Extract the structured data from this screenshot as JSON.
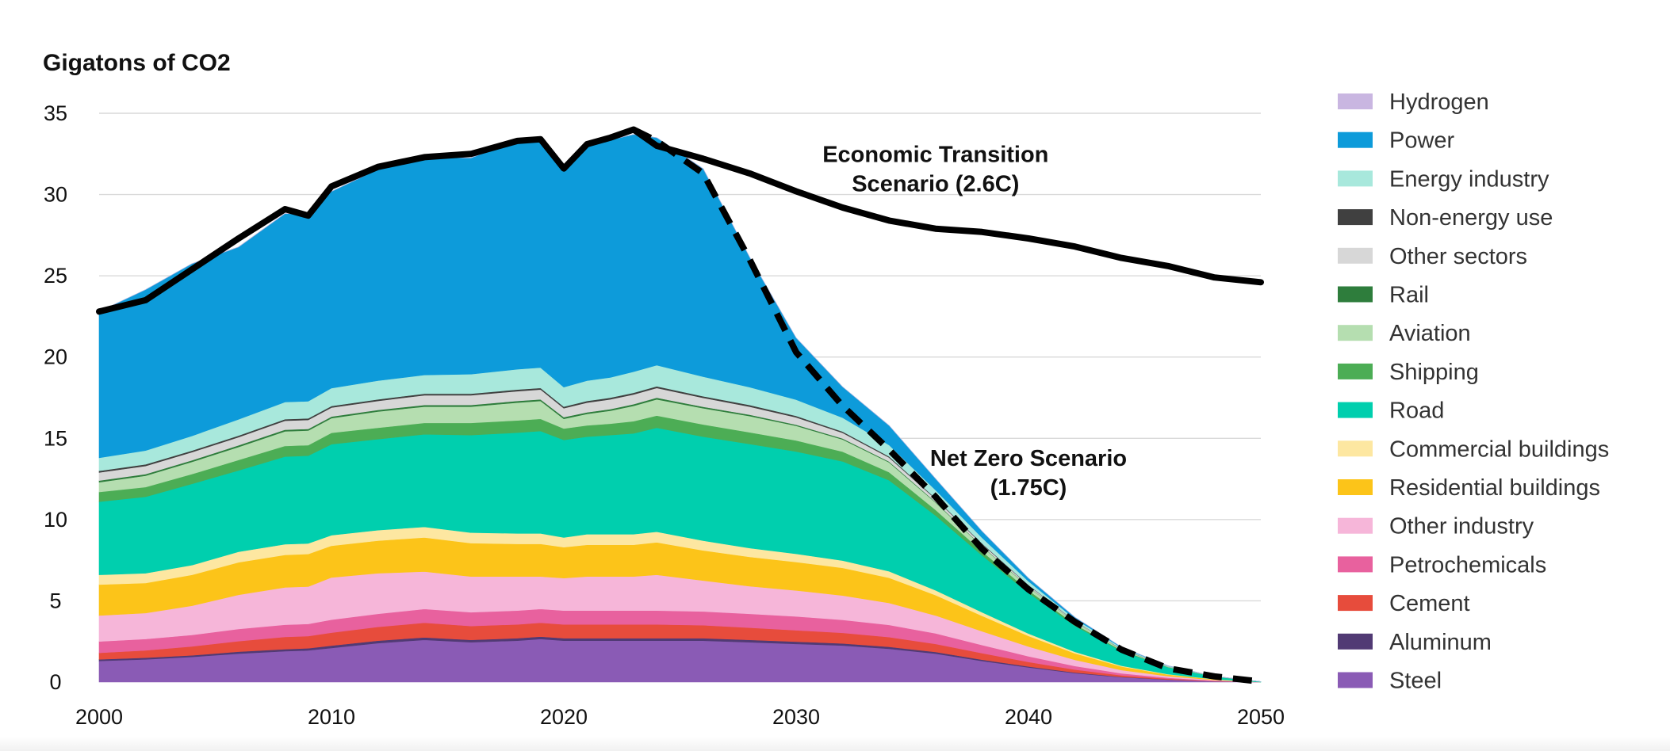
{
  "chart_data": {
    "type": "area",
    "stacked": true,
    "ylabel": "Gigatons of CO2",
    "xlabel": "",
    "ylim": [
      0,
      35
    ],
    "xlim": [
      2000,
      2050
    ],
    "yticks": [
      0,
      5,
      10,
      15,
      20,
      25,
      30,
      35
    ],
    "xticks": [
      2000,
      2010,
      2020,
      2030,
      2040,
      2050
    ],
    "grid": true,
    "legend_position": "right",
    "x": [
      2000,
      2002,
      2004,
      2006,
      2008,
      2009,
      2010,
      2012,
      2014,
      2016,
      2018,
      2019,
      2020,
      2021,
      2022,
      2023,
      2024,
      2026,
      2028,
      2030,
      2032,
      2034,
      2036,
      2038,
      2040,
      2042,
      2044,
      2046,
      2048,
      2050
    ],
    "series": [
      {
        "name": "Steel",
        "color": "#8a5bb5",
        "values": [
          1.3,
          1.4,
          1.55,
          1.75,
          1.9,
          1.95,
          2.1,
          2.4,
          2.6,
          2.45,
          2.55,
          2.65,
          2.55,
          2.55,
          2.55,
          2.55,
          2.55,
          2.55,
          2.45,
          2.35,
          2.25,
          2.05,
          1.75,
          1.3,
          0.9,
          0.55,
          0.3,
          0.15,
          0.05,
          0.0
        ]
      },
      {
        "name": "Aluminum",
        "color": "#513a74",
        "values": [
          0.1,
          0.1,
          0.1,
          0.12,
          0.13,
          0.13,
          0.14,
          0.15,
          0.15,
          0.15,
          0.15,
          0.15,
          0.15,
          0.15,
          0.15,
          0.15,
          0.15,
          0.15,
          0.15,
          0.14,
          0.13,
          0.12,
          0.1,
          0.08,
          0.06,
          0.04,
          0.02,
          0.01,
          0.0,
          0.0
        ]
      },
      {
        "name": "Cement",
        "color": "#e74c3c",
        "values": [
          0.4,
          0.45,
          0.55,
          0.65,
          0.75,
          0.75,
          0.8,
          0.85,
          0.9,
          0.85,
          0.85,
          0.85,
          0.85,
          0.85,
          0.85,
          0.85,
          0.85,
          0.8,
          0.75,
          0.7,
          0.65,
          0.6,
          0.5,
          0.4,
          0.28,
          0.18,
          0.1,
          0.05,
          0.02,
          0.0
        ]
      },
      {
        "name": "Petrochemicals",
        "color": "#e8619e",
        "values": [
          0.7,
          0.7,
          0.7,
          0.75,
          0.75,
          0.75,
          0.8,
          0.8,
          0.85,
          0.85,
          0.85,
          0.85,
          0.85,
          0.85,
          0.85,
          0.85,
          0.85,
          0.85,
          0.85,
          0.85,
          0.8,
          0.75,
          0.65,
          0.5,
          0.35,
          0.22,
          0.12,
          0.06,
          0.02,
          0.0
        ]
      },
      {
        "name": "Other industry",
        "color": "#f6b6d9",
        "values": [
          1.6,
          1.6,
          1.8,
          2.1,
          2.3,
          2.3,
          2.6,
          2.5,
          2.3,
          2.2,
          2.1,
          2.0,
          2.0,
          2.1,
          2.1,
          2.1,
          2.2,
          1.9,
          1.7,
          1.6,
          1.5,
          1.35,
          1.1,
          0.85,
          0.6,
          0.38,
          0.2,
          0.1,
          0.04,
          0.0
        ]
      },
      {
        "name": "Residential buildings",
        "color": "#fcc419",
        "values": [
          1.9,
          1.85,
          1.9,
          2.0,
          2.0,
          2.0,
          1.95,
          2.0,
          2.1,
          2.05,
          2.0,
          2.0,
          1.9,
          1.95,
          1.95,
          1.95,
          2.0,
          1.85,
          1.8,
          1.75,
          1.7,
          1.55,
          1.25,
          0.95,
          0.65,
          0.4,
          0.22,
          0.1,
          0.04,
          0.0
        ]
      },
      {
        "name": "Commercial buildings",
        "color": "#fde7a1",
        "values": [
          0.6,
          0.6,
          0.6,
          0.65,
          0.65,
          0.65,
          0.65,
          0.65,
          0.65,
          0.65,
          0.65,
          0.65,
          0.6,
          0.65,
          0.65,
          0.65,
          0.65,
          0.6,
          0.55,
          0.5,
          0.45,
          0.4,
          0.3,
          0.22,
          0.15,
          0.09,
          0.05,
          0.02,
          0.01,
          0.0
        ]
      },
      {
        "name": "Road",
        "color": "#00cfae",
        "values": [
          4.5,
          4.7,
          5.0,
          5.0,
          5.4,
          5.4,
          5.6,
          5.6,
          5.7,
          6.0,
          6.2,
          6.3,
          6.0,
          6.0,
          6.1,
          6.2,
          6.4,
          6.4,
          6.4,
          6.3,
          6.1,
          5.6,
          4.6,
          3.5,
          2.5,
          1.6,
          0.9,
          0.42,
          0.15,
          0.03
        ]
      },
      {
        "name": "Shipping",
        "color": "#4cad55",
        "values": [
          0.6,
          0.6,
          0.6,
          0.65,
          0.65,
          0.65,
          0.7,
          0.7,
          0.7,
          0.75,
          0.75,
          0.75,
          0.7,
          0.7,
          0.7,
          0.75,
          0.75,
          0.75,
          0.72,
          0.68,
          0.6,
          0.5,
          0.35,
          0.25,
          0.16,
          0.1,
          0.05,
          0.02,
          0.01,
          0.0
        ]
      },
      {
        "name": "Aviation",
        "color": "#b5deb0",
        "values": [
          0.6,
          0.7,
          0.75,
          0.8,
          0.9,
          0.9,
          0.9,
          1.0,
          1.0,
          1.0,
          1.1,
          1.1,
          0.6,
          0.7,
          0.8,
          0.95,
          1.0,
          1.0,
          1.0,
          0.9,
          0.75,
          0.6,
          0.45,
          0.3,
          0.2,
          0.12,
          0.06,
          0.03,
          0.01,
          0.0
        ]
      },
      {
        "name": "Rail",
        "color": "#2e7d3c",
        "values": [
          0.1,
          0.1,
          0.1,
          0.1,
          0.1,
          0.1,
          0.1,
          0.1,
          0.1,
          0.1,
          0.1,
          0.1,
          0.1,
          0.1,
          0.1,
          0.1,
          0.1,
          0.09,
          0.08,
          0.07,
          0.06,
          0.05,
          0.04,
          0.03,
          0.02,
          0.01,
          0.0,
          0.0,
          0.0,
          0.0
        ]
      },
      {
        "name": "Other sectors",
        "color": "#d7d7d7",
        "values": [
          0.5,
          0.5,
          0.5,
          0.5,
          0.55,
          0.55,
          0.55,
          0.55,
          0.6,
          0.6,
          0.6,
          0.6,
          0.55,
          0.6,
          0.6,
          0.6,
          0.6,
          0.55,
          0.5,
          0.45,
          0.35,
          0.25,
          0.18,
          0.12,
          0.08,
          0.05,
          0.02,
          0.01,
          0.0,
          0.0
        ]
      },
      {
        "name": "Non-energy use",
        "color": "#404040",
        "values": [
          0.1,
          0.1,
          0.1,
          0.1,
          0.1,
          0.1,
          0.1,
          0.1,
          0.1,
          0.1,
          0.1,
          0.1,
          0.1,
          0.1,
          0.1,
          0.1,
          0.1,
          0.1,
          0.1,
          0.09,
          0.08,
          0.07,
          0.05,
          0.04,
          0.03,
          0.02,
          0.01,
          0.0,
          0.0,
          0.0
        ]
      },
      {
        "name": "Energy industry",
        "color": "#a8e8dc",
        "values": [
          0.8,
          0.85,
          0.9,
          1.0,
          1.05,
          1.05,
          1.1,
          1.15,
          1.15,
          1.2,
          1.25,
          1.25,
          1.2,
          1.25,
          1.25,
          1.3,
          1.3,
          1.2,
          1.1,
          1.0,
          0.85,
          0.7,
          0.5,
          0.35,
          0.22,
          0.13,
          0.07,
          0.03,
          0.01,
          0.0
        ]
      },
      {
        "name": "Power",
        "color": "#0d9bda",
        "values": [
          9.0,
          9.9,
          10.6,
          10.6,
          11.6,
          11.5,
          12.1,
          13.0,
          13.4,
          13.3,
          14.1,
          14.0,
          13.6,
          14.4,
          14.6,
          14.6,
          14.0,
          12.8,
          8.0,
          3.8,
          1.9,
          1.2,
          0.7,
          0.4,
          0.2,
          0.1,
          0.04,
          0.01,
          0.0,
          0.0
        ]
      },
      {
        "name": "Hydrogen",
        "color": "#c9b6e1",
        "values": [
          0.0,
          0.0,
          0.0,
          0.0,
          0.0,
          0.0,
          0.0,
          0.0,
          0.0,
          0.0,
          0.0,
          0.0,
          0.0,
          0.0,
          0.0,
          0.0,
          0.0,
          0.0,
          0.0,
          0.0,
          0.0,
          0.0,
          0.0,
          0.0,
          0.0,
          0.0,
          0.0,
          0.0,
          0.0,
          0.0
        ]
      }
    ],
    "lines": [
      {
        "name": "Economic Transition Scenario (2.6C)",
        "style": "solid",
        "color": "#000000",
        "x": [
          2000,
          2002,
          2004,
          2006,
          2008,
          2009,
          2010,
          2012,
          2014,
          2016,
          2018,
          2019,
          2020,
          2021,
          2022,
          2023,
          2024,
          2026,
          2028,
          2030,
          2032,
          2034,
          2036,
          2038,
          2040,
          2042,
          2044,
          2046,
          2048,
          2050
        ],
        "values": [
          22.8,
          23.5,
          25.4,
          27.3,
          29.1,
          28.7,
          30.5,
          31.7,
          32.3,
          32.5,
          33.3,
          33.4,
          31.6,
          33.1,
          33.5,
          34.0,
          33.0,
          32.2,
          31.3,
          30.2,
          29.2,
          28.4,
          27.9,
          27.7,
          27.3,
          26.8,
          26.1,
          25.6,
          24.9,
          24.6
        ]
      },
      {
        "name": "Net Zero Scenario (1.75C)",
        "style": "dashed",
        "color": "#000000",
        "x": [
          2023,
          2024,
          2026,
          2028,
          2030,
          2032,
          2034,
          2036,
          2038,
          2040,
          2042,
          2044,
          2046,
          2048,
          2050
        ],
        "values": [
          34.0,
          33.3,
          31.3,
          26.0,
          20.3,
          17.0,
          14.3,
          11.4,
          8.2,
          5.7,
          3.7,
          2.0,
          0.85,
          0.35,
          0.03
        ]
      }
    ],
    "annotations": [
      {
        "lines": [
          "Economic Transition",
          "Scenario (2.6C)"
        ],
        "at": [
          2036,
          32
        ]
      },
      {
        "lines": [
          "Net Zero Scenario",
          "(1.75C)"
        ],
        "at": [
          2040,
          13.3
        ]
      }
    ]
  }
}
